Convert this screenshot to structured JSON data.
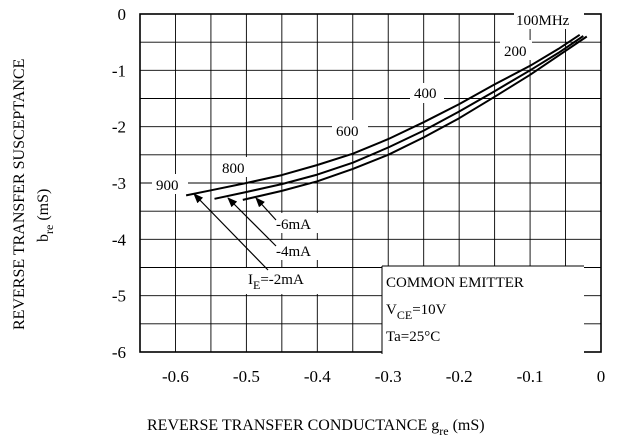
{
  "chart_data": {
    "type": "line",
    "xlabel": "REVERSE TRANSFER CONDUCTANCE",
    "xlabel_symbol": "g",
    "xlabel_subscript": "re",
    "xlabel_unit": "(mS)",
    "ylabel": "REVERSE TRANSFER SUSCEPTANCE",
    "ylabel_symbol": "b",
    "ylabel_subscript": "re",
    "ylabel_unit": "(mS)",
    "xlim": [
      -0.65,
      0
    ],
    "ylim": [
      -6,
      0
    ],
    "x_ticks": [
      -0.6,
      -0.5,
      -0.4,
      -0.3,
      -0.2,
      -0.1,
      0
    ],
    "x_tick_labels": [
      "-0.6",
      "-0.5",
      "-0.4",
      "-0.3",
      "-0.2",
      "-0.1",
      "0"
    ],
    "y_ticks": [
      0,
      -1,
      -2,
      -3,
      -4,
      -5,
      -6
    ],
    "y_tick_labels": [
      "0",
      "-1",
      "-2",
      "-3",
      "-4",
      "-5",
      "-6"
    ],
    "grid": true,
    "series": [
      {
        "name": "IE=-2mA",
        "x": [
          -0.585,
          -0.55,
          -0.5,
          -0.45,
          -0.4,
          -0.35,
          -0.3,
          -0.25,
          -0.2,
          -0.15,
          -0.1,
          -0.06,
          -0.03
        ],
        "y": [
          -3.22,
          -3.13,
          -3.0,
          -2.86,
          -2.68,
          -2.48,
          -2.22,
          -1.92,
          -1.6,
          -1.25,
          -0.92,
          -0.62,
          -0.37
        ]
      },
      {
        "name": "-4mA",
        "x": [
          -0.545,
          -0.5,
          -0.45,
          -0.4,
          -0.35,
          -0.3,
          -0.25,
          -0.2,
          -0.15,
          -0.1,
          -0.06,
          -0.025
        ],
        "y": [
          -3.28,
          -3.16,
          -3.02,
          -2.85,
          -2.64,
          -2.37,
          -2.07,
          -1.73,
          -1.37,
          -1.0,
          -0.69,
          -0.39
        ]
      },
      {
        "name": "-6mA",
        "x": [
          -0.505,
          -0.45,
          -0.4,
          -0.35,
          -0.3,
          -0.25,
          -0.2,
          -0.15,
          -0.1,
          -0.06,
          -0.02
        ],
        "y": [
          -3.3,
          -3.14,
          -2.97,
          -2.75,
          -2.5,
          -2.19,
          -1.85,
          -1.47,
          -1.08,
          -0.74,
          -0.4
        ]
      }
    ],
    "frequency_labels": [
      "100MHz",
      "200",
      "400",
      "600",
      "800",
      "900"
    ],
    "current_labels": {
      "ie_symbol": "I",
      "ie_subscript": "E",
      "ie_value": "=-2mA",
      "mid": "-4mA",
      "high": "-6mA"
    },
    "condition_box": {
      "line1": "COMMON EMITTER",
      "line2_symbol": "V",
      "line2_subscript": "CE",
      "line2_value": "=10V",
      "line3": "Ta=25°C"
    }
  }
}
